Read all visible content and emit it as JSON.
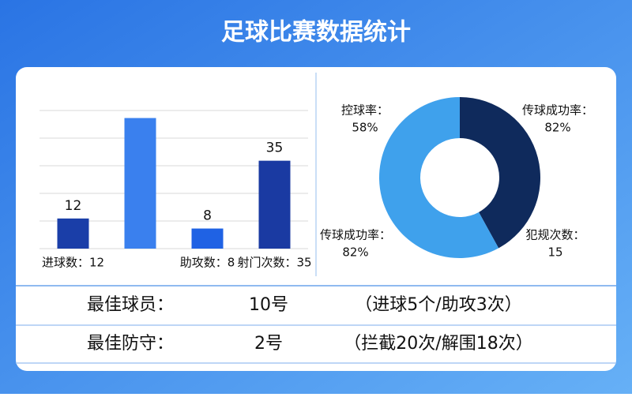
{
  "title": "足球比赛数据统计",
  "chart_data": [
    {
      "type": "bar",
      "categories": [
        "进球数：12",
        null,
        "助攻数：8",
        "射门次数：35"
      ],
      "values": [
        12,
        52,
        8,
        35
      ],
      "value_labels": [
        "12",
        null,
        "8",
        "35"
      ],
      "colors": [
        "#1a3ea8",
        "#3a80ee",
        "#1f62e4",
        "#1a3aa2"
      ],
      "ylim": [
        0,
        55
      ],
      "yticks": [
        0,
        11,
        22,
        33,
        44,
        55
      ],
      "grid": true
    },
    {
      "type": "pie",
      "values": [
        42,
        58
      ],
      "colors": [
        "#0f2a5c",
        "#3fa1ec"
      ],
      "donut": true,
      "annotations": [
        [
          "控球率：",
          "58%"
        ],
        [
          "传球成功率：",
          "82%"
        ],
        [
          "传球成功率：",
          "82%"
        ],
        [
          "犯规次数：",
          "15"
        ]
      ]
    }
  ],
  "table": {
    "rows": [
      [
        "最佳球员：",
        "10号",
        "（进球5个/助攻3次）"
      ],
      [
        "最佳防守：",
        "2号",
        "（拦截20次/解围18次）"
      ]
    ]
  }
}
